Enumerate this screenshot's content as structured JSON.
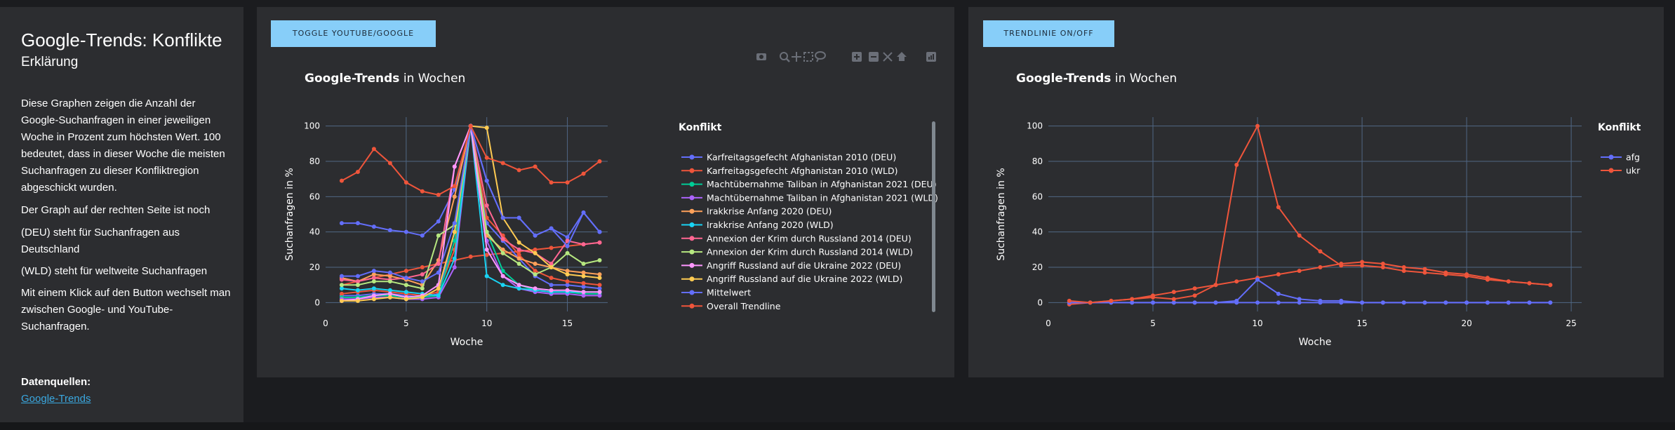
{
  "sidebar": {
    "title": "Google-Trends: Konflikte",
    "subtitle": "Erklärung",
    "paragraphs": [
      "Diese Graphen zeigen die Anzahl der Google-Suchanfragen in einer jeweiligen Woche in Prozent zum höchsten Wert. 100 bedeutet, dass in dieser Woche die meisten Suchanfragen zu dieser Konfliktregion abgeschickt wurden.",
      "Der Graph auf der rechten Seite ist noch",
      "(DEU) steht für Suchanfragen aus Deutschland",
      "(WLD) steht für weltweite Suchanfragen",
      "Mit einem Klick auf den Button wechselt man zwischen Google- und YouTube-Suchanfragen."
    ],
    "sources_heading": "Datenquellen:",
    "sources_link": "Google-Trends"
  },
  "buttons": {
    "toggle": "TOGGLE YOUTUBE/GOOGLE",
    "trendline": "TRENDLINIE ON/OFF"
  },
  "modebar_icons": [
    "camera-icon",
    "zoom-icon",
    "pan-icon",
    "box-select-icon",
    "lasso-icon",
    "zoom-in-icon",
    "zoom-out-icon",
    "autoscale-icon",
    "reset-axes-icon",
    "plotly-logo-icon"
  ],
  "chart_data": [
    {
      "type": "line",
      "title_bold": "Google-Trends",
      "title_rest": " in Wochen",
      "xlabel": "Woche",
      "ylabel": "Suchanfragen in %",
      "xlim": [
        0,
        17.5
      ],
      "ylim": [
        -5,
        105
      ],
      "xticks": [
        0,
        5,
        10,
        15
      ],
      "yticks": [
        0,
        20,
        40,
        60,
        80,
        100
      ],
      "grid": true,
      "legend_title": "Konflikt",
      "legend_position": "right",
      "x": [
        1,
        2,
        3,
        4,
        5,
        6,
        7,
        8,
        9,
        10,
        11,
        12,
        13,
        14,
        15,
        16,
        17
      ],
      "series": [
        {
          "name": "Karfreitagsgefecht Afghanistan 2010 (DEU)",
          "color": "#636efa",
          "values": [
            4,
            4,
            5,
            5,
            4,
            3,
            5,
            40,
            100,
            45,
            35,
            25,
            15,
            10,
            10,
            9,
            8
          ]
        },
        {
          "name": "Karfreitagsgefecht Afghanistan 2010 (WLD)",
          "color": "#ef553b",
          "values": [
            5,
            6,
            7,
            6,
            5,
            4,
            6,
            30,
            100,
            48,
            38,
            27,
            18,
            14,
            12,
            11,
            10
          ]
        },
        {
          "name": "Machtübernahme Taliban in Afghanistan 2021 (DEU)",
          "color": "#00cc96",
          "values": [
            3,
            3,
            4,
            4,
            3,
            3,
            4,
            35,
            100,
            40,
            18,
            10,
            7,
            6,
            6,
            5,
            5
          ]
        },
        {
          "name": "Machtübernahme Taliban in Afghanistan 2021 (WLD)",
          "color": "#ab63fa",
          "values": [
            2,
            2,
            3,
            3,
            2,
            2,
            3,
            20,
            100,
            35,
            15,
            8,
            6,
            5,
            5,
            4,
            4
          ]
        },
        {
          "name": "Irakkrise Anfang 2020 (DEU)",
          "color": "#ffa15a",
          "values": [
            14,
            12,
            16,
            15,
            13,
            10,
            24,
            60,
            100,
            38,
            30,
            25,
            22,
            20,
            18,
            17,
            16
          ]
        },
        {
          "name": "Irakkrise Anfang 2020 (WLD)",
          "color": "#19d3f3",
          "values": [
            8,
            7,
            8,
            7,
            6,
            5,
            4,
            25,
            100,
            15,
            10,
            8,
            7,
            6,
            6,
            6,
            6
          ]
        },
        {
          "name": "Annexion der Krim durch Russland 2014 (DEU)",
          "color": "#ff6692",
          "values": [
            13,
            12,
            14,
            13,
            14,
            16,
            22,
            77,
            100,
            55,
            36,
            30,
            28,
            22,
            35,
            33,
            34
          ]
        },
        {
          "name": "Annexion der Krim durch Russland 2014 (WLD)",
          "color": "#b6e880",
          "values": [
            10,
            10,
            12,
            12,
            10,
            8,
            38,
            44,
            100,
            40,
            28,
            22,
            16,
            20,
            28,
            22,
            24
          ]
        },
        {
          "name": "Angriff Russland auf die Ukraine 2022 (DEU)",
          "color": "#ff97ff",
          "values": [
            1,
            2,
            4,
            5,
            3,
            4,
            10,
            77,
            100,
            30,
            15,
            10,
            8,
            7,
            7,
            6,
            6
          ]
        },
        {
          "name": "Angriff Russland auf die Ukraine 2022 (WLD)",
          "color": "#fecb52",
          "values": [
            1,
            1,
            2,
            3,
            2,
            3,
            8,
            40,
            100,
            99,
            48,
            34,
            28,
            20,
            16,
            15,
            14
          ]
        },
        {
          "name": "Mittelwert",
          "color": "#636efa",
          "values": [
            15,
            15,
            18,
            17,
            14,
            12,
            17,
            45,
            100,
            69,
            48,
            48,
            38,
            42,
            32,
            51,
            40
          ]
        },
        {
          "name": "Overall Trendline",
          "color": "#ef553b",
          "values": [
            69,
            74,
            87,
            79,
            68,
            63,
            61,
            66,
            100,
            82,
            79,
            75,
            77,
            68,
            68,
            73,
            80
          ]
        }
      ],
      "extra_lines": [
        {
          "color": "#ef553b",
          "values": [
            10,
            12,
            14,
            16,
            18,
            20,
            22,
            24,
            26,
            27,
            28,
            29,
            30,
            31,
            32,
            33,
            34
          ]
        },
        {
          "color": "#636efa",
          "values": [
            45,
            45,
            43,
            41,
            40,
            38,
            46,
            64,
            100,
            69,
            48,
            48,
            38,
            42,
            37,
            51,
            40
          ]
        }
      ]
    },
    {
      "type": "line",
      "title_bold": "Google-Trends",
      "title_rest": " in Wochen",
      "xlabel": "Woche",
      "ylabel": "Suchanfragen in %",
      "xlim": [
        0,
        25.5
      ],
      "ylim": [
        -5,
        105
      ],
      "xticks": [
        0,
        5,
        10,
        15,
        20,
        25
      ],
      "yticks": [
        0,
        20,
        40,
        60,
        80,
        100
      ],
      "grid": true,
      "legend_title": "Konflikt",
      "legend_position": "right",
      "x": [
        1,
        2,
        3,
        4,
        5,
        6,
        7,
        8,
        9,
        10,
        11,
        12,
        13,
        14,
        15,
        16,
        17,
        18,
        19,
        20,
        21,
        22,
        23,
        24
      ],
      "series": [
        {
          "name": "afg",
          "color": "#636efa",
          "values": [
            0,
            0,
            0,
            0,
            0,
            0,
            0,
            0,
            1,
            13,
            5,
            2,
            1,
            1,
            0,
            0,
            0,
            0,
            0,
            0,
            0,
            0,
            0,
            0
          ]
        },
        {
          "name": "ukr",
          "color": "#ef553b",
          "values": [
            1,
            0,
            1,
            2,
            3,
            2,
            4,
            10,
            78,
            100,
            54,
            38,
            29,
            21,
            21,
            20,
            18,
            17,
            16,
            15,
            13,
            12,
            11,
            10
          ]
        }
      ],
      "extra_lines": [
        {
          "color": "#ef553b",
          "values": [
            -1,
            0,
            1,
            2,
            4,
            6,
            8,
            10,
            12,
            14,
            16,
            18,
            20,
            22,
            23,
            22,
            20,
            19,
            17,
            16,
            14,
            12,
            11,
            10
          ]
        },
        {
          "color": "#636efa",
          "values": [
            0,
            0,
            0,
            0,
            0,
            0,
            0,
            0,
            0,
            0,
            0,
            0,
            0,
            0,
            0,
            0,
            0,
            0,
            0,
            0,
            0,
            0,
            0,
            0
          ]
        }
      ]
    }
  ]
}
